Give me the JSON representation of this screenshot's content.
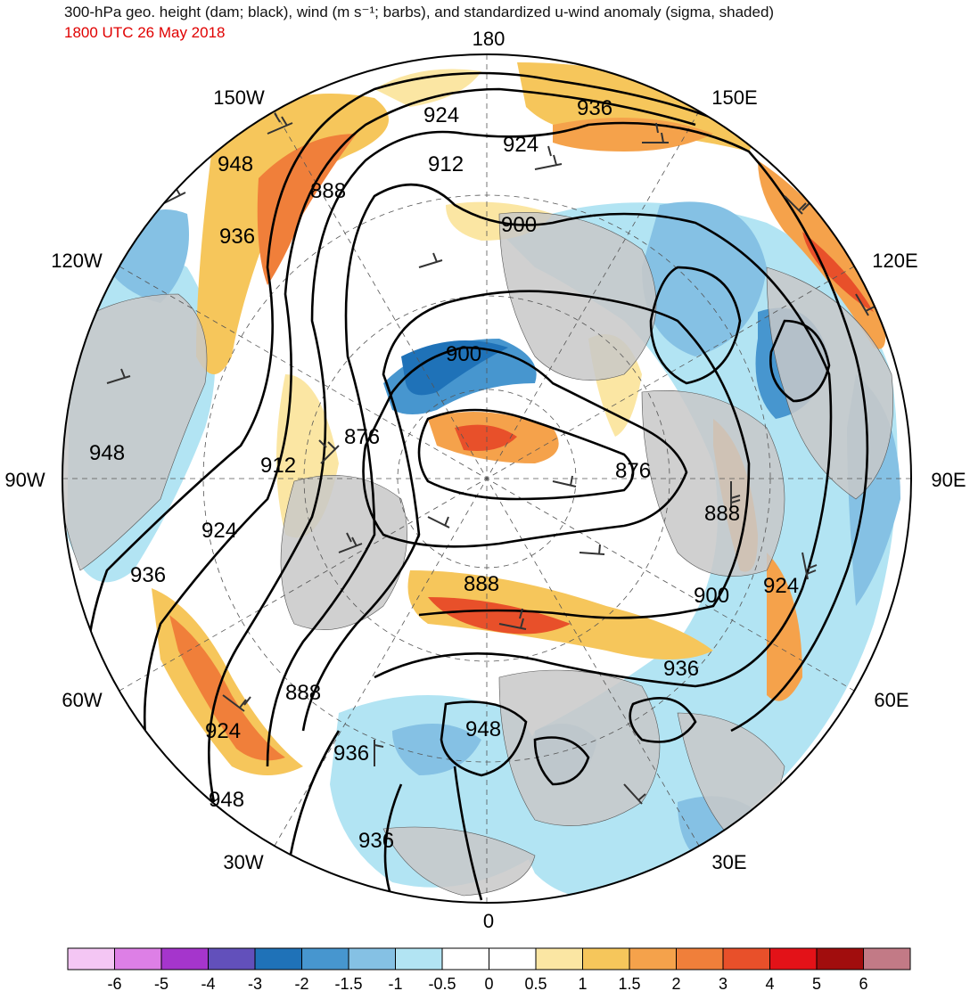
{
  "title": "300-hPa geo. height (dam; black), wind (m s⁻¹; barbs), and standardized u-wind anomaly (sigma, shaded)",
  "subtitle": "1800 UTC 26 May 2018",
  "colors": {
    "land": "#c8c8c8",
    "contour": "#000000",
    "barb": "#333333",
    "subtitle": "#e00000"
  },
  "lon_labels": {
    "n180": "180",
    "w150": "150W",
    "e150": "150E",
    "w120": "120W",
    "e120": "120E",
    "w90": "90W",
    "e90": "90E",
    "w60": "60W",
    "e60": "60E",
    "w30": "30W",
    "e30": "30E",
    "s0": "0"
  },
  "contour_labels": [
    "948",
    "936",
    "924",
    "912",
    "900",
    "888",
    "876"
  ],
  "colorbar": {
    "ticks": [
      "-6",
      "-5",
      "-4",
      "-3",
      "-2",
      "-1.5",
      "-1",
      "-0.5",
      "0",
      "0.5",
      "1",
      "1.5",
      "2",
      "3",
      "4",
      "5",
      "6"
    ],
    "colors": [
      "#f4c6f4",
      "#dd7fe6",
      "#a535cc",
      "#6250bb",
      "#1f72b8",
      "#4796cf",
      "#85c1e4",
      "#b2e4f3",
      "#ffffff",
      "#ffffff",
      "#fbe6a3",
      "#f6c65b",
      "#f5a24b",
      "#f07f3a",
      "#e8502a",
      "#e31218",
      "#a10d0d",
      "#c27a86"
    ]
  }
}
